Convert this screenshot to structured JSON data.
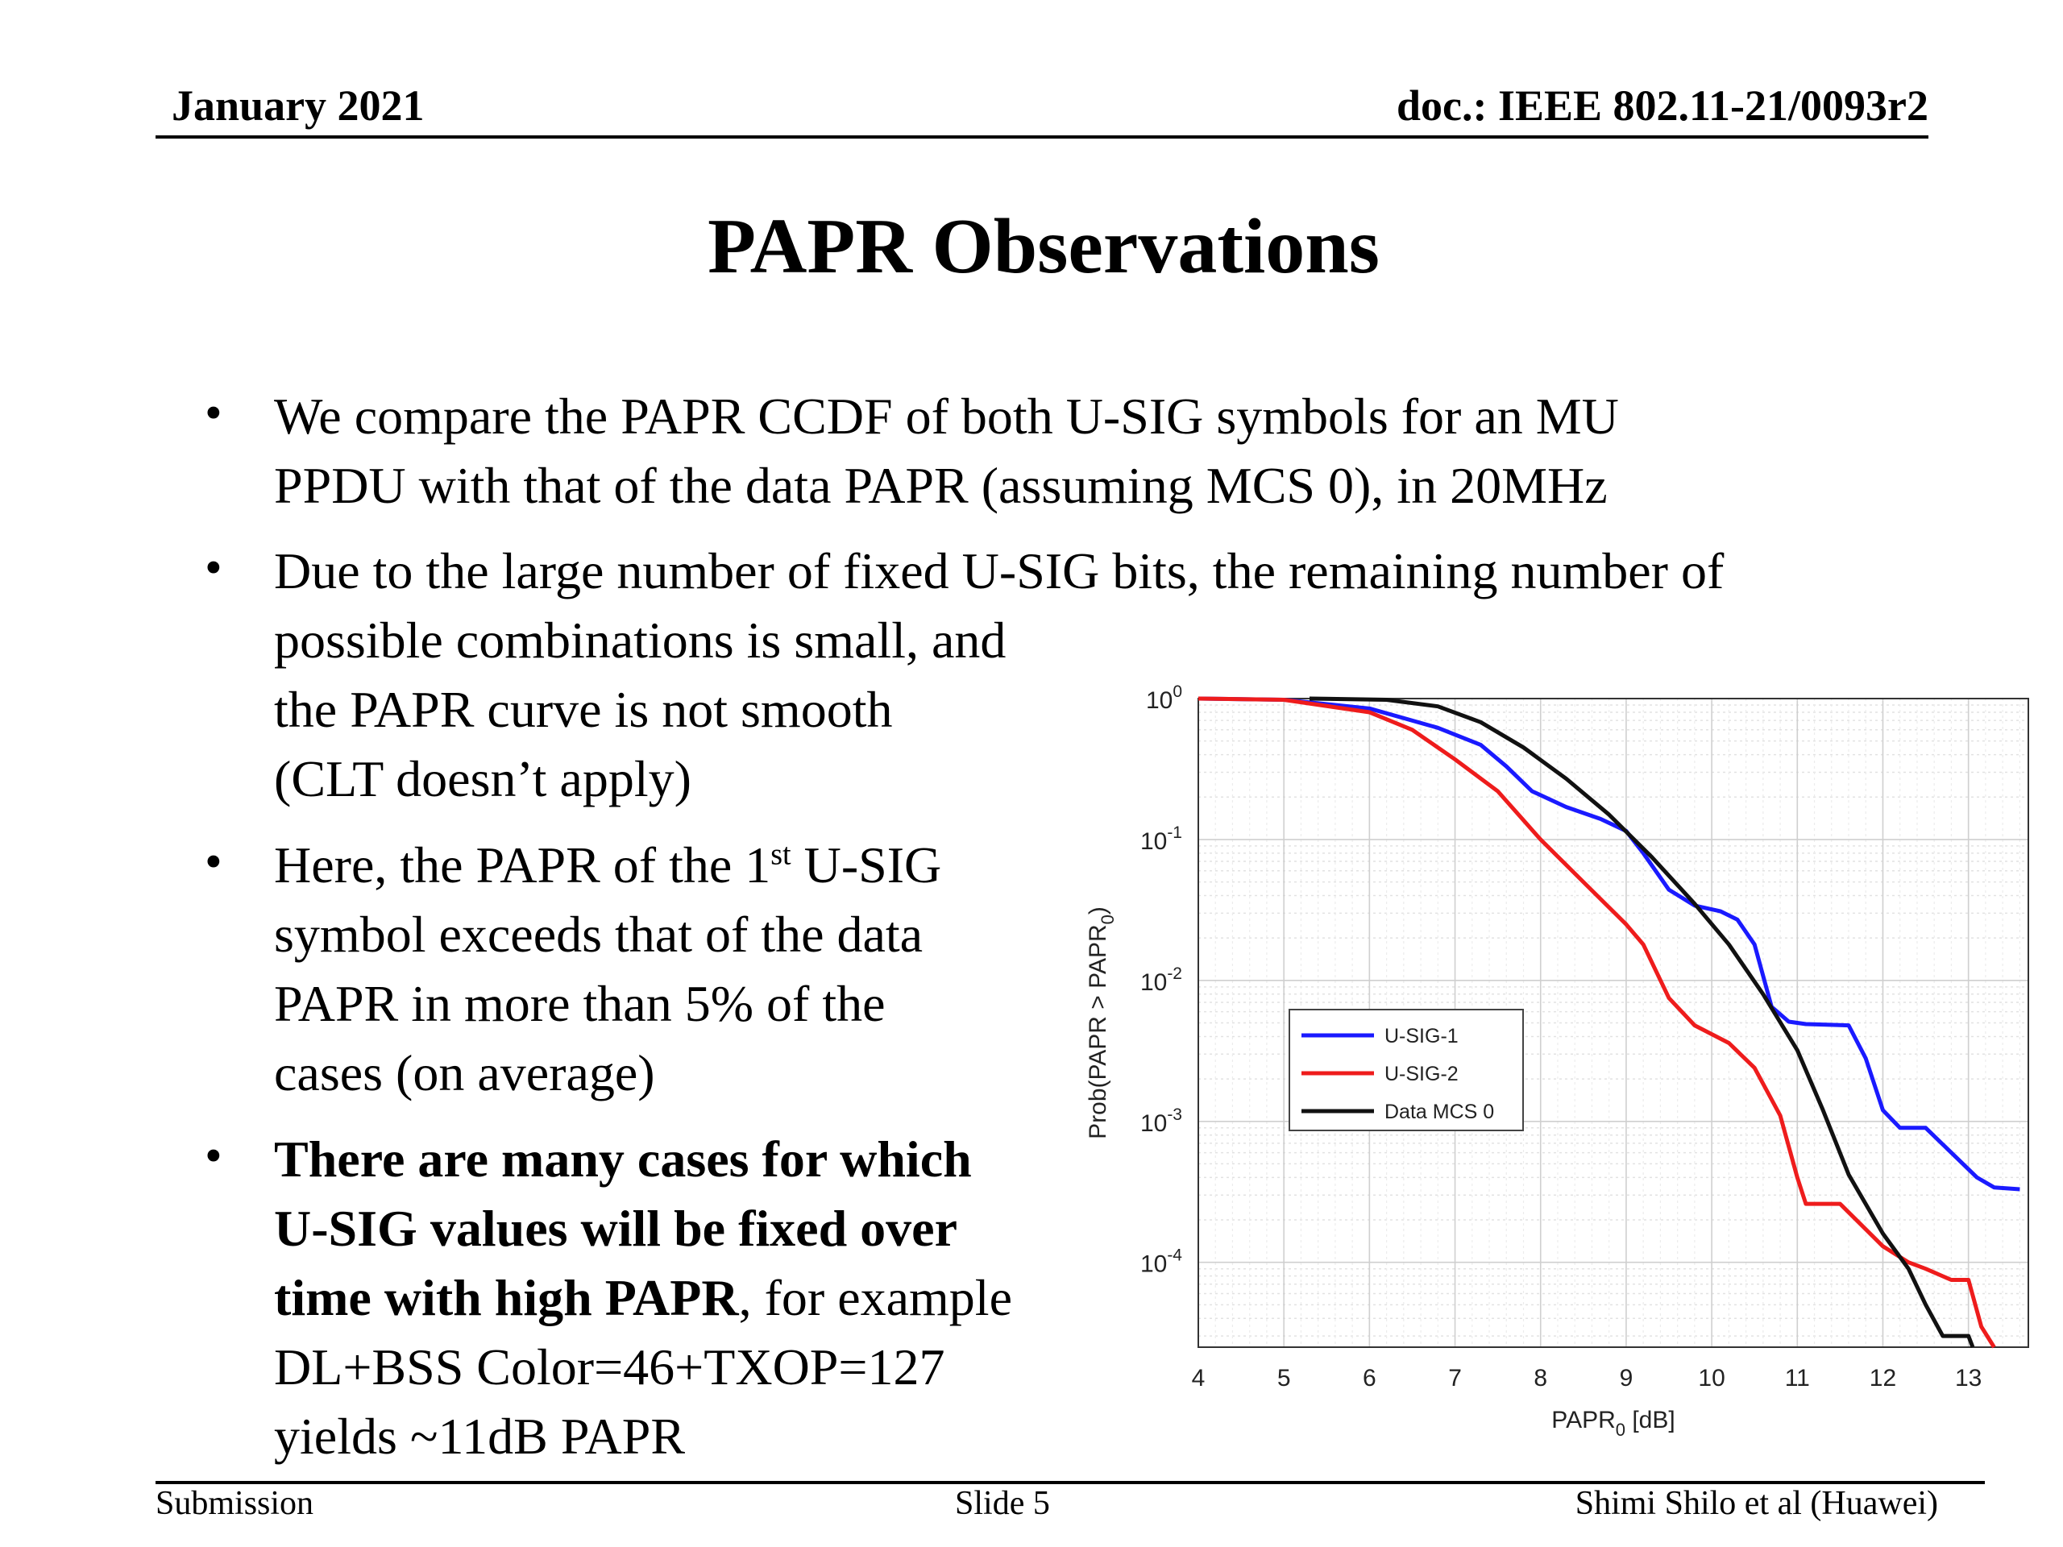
{
  "header": {
    "date": "January 2021",
    "doc": "doc.: IEEE 802.11-21/0093r2"
  },
  "slide": {
    "title": "PAPR Observations",
    "bullets": [
      {
        "line1": "We compare the PAPR CCDF of both U-SIG symbols for an MU",
        "line2": "PPDU with that of the data PAPR (assuming MCS 0), in 20MHz"
      },
      {
        "line1": "Due to the large number of fixed U-SIG bits, the remaining number of",
        "line2": "possible combinations is small, and",
        "line3": "the PAPR curve is not smooth",
        "line4": "(CLT doesn’t apply)"
      },
      {
        "pre": "Here, the PAPR of the 1",
        "sup": "st",
        "post": " U-SIG",
        "line2": "symbol exceeds that of the data",
        "line3": "PAPR in more than 5% of the",
        "line4": "cases (on average)"
      },
      {
        "bold1": "There are many cases for which",
        "bold2": "U-SIG values will be fixed over",
        "bold3": "time with high PAPR",
        "rest3": ", for example",
        "line4": "DL+BSS Color=46+TXOP=127",
        "line5": "yields ~11dB PAPR"
      }
    ]
  },
  "footer": {
    "left": "Submission",
    "center": "Slide 5",
    "right": "Shimi Shilo et al (Huawei)"
  },
  "chart_data": {
    "type": "line",
    "xlabel": "PAPR",
    "xlabel_sub": "0",
    "xlabel_unit": " [dB]",
    "ylabel": "Prob(PAPR > PAPR",
    "ylabel_sub": "0",
    "ylabel_end": ")",
    "y_scale": "log",
    "xlim": [
      4,
      13.7
    ],
    "ylim": [
      2.5e-05,
      1
    ],
    "xticks": [
      "4",
      "5",
      "6",
      "7",
      "8",
      "9",
      "10",
      "11",
      "12",
      "13"
    ],
    "yticks": [
      {
        "base": "10",
        "exp": "0"
      },
      {
        "base": "10",
        "exp": "-1"
      },
      {
        "base": "10",
        "exp": "-2"
      },
      {
        "base": "10",
        "exp": "-3"
      },
      {
        "base": "10",
        "exp": "-4"
      }
    ],
    "grid": true,
    "legend_position": "lower-left",
    "series": [
      {
        "name": "U-SIG-1",
        "color": "#1a1aff",
        "points": [
          [
            4,
            1
          ],
          [
            5,
            0.98
          ],
          [
            6,
            0.85
          ],
          [
            6.8,
            0.62
          ],
          [
            7.3,
            0.47
          ],
          [
            7.6,
            0.33
          ],
          [
            7.9,
            0.22
          ],
          [
            8.3,
            0.17
          ],
          [
            8.7,
            0.14
          ],
          [
            9.0,
            0.115
          ],
          [
            9.2,
            0.08
          ],
          [
            9.5,
            0.044
          ],
          [
            9.8,
            0.034
          ],
          [
            10.1,
            0.031
          ],
          [
            10.3,
            0.027
          ],
          [
            10.5,
            0.018
          ],
          [
            10.7,
            0.0065
          ],
          [
            10.9,
            0.0051
          ],
          [
            11.1,
            0.0049
          ],
          [
            11.6,
            0.0048
          ],
          [
            11.8,
            0.0028
          ],
          [
            12.0,
            0.0012
          ],
          [
            12.2,
            0.0009
          ],
          [
            12.5,
            0.0009
          ],
          [
            12.8,
            0.0006
          ],
          [
            13.1,
            0.0004
          ],
          [
            13.3,
            0.00034
          ],
          [
            13.6,
            0.00033
          ]
        ]
      },
      {
        "name": "U-SIG-2",
        "color": "#ee1c1c",
        "points": [
          [
            4,
            1
          ],
          [
            5,
            0.98
          ],
          [
            6,
            0.8
          ],
          [
            6.5,
            0.6
          ],
          [
            7,
            0.37
          ],
          [
            7.5,
            0.22
          ],
          [
            8,
            0.1
          ],
          [
            8.5,
            0.05
          ],
          [
            9,
            0.025
          ],
          [
            9.2,
            0.018
          ],
          [
            9.5,
            0.0075
          ],
          [
            9.8,
            0.0048
          ],
          [
            10.2,
            0.0036
          ],
          [
            10.5,
            0.0024
          ],
          [
            10.8,
            0.0011
          ],
          [
            11.0,
            0.0004
          ],
          [
            11.1,
            0.00026
          ],
          [
            11.5,
            0.00026
          ],
          [
            12.0,
            0.00013
          ],
          [
            12.3,
            0.0001
          ],
          [
            12.5,
            9e-05
          ],
          [
            12.8,
            7.5e-05
          ],
          [
            13.0,
            7.5e-05
          ],
          [
            13.15,
            3.5e-05
          ],
          [
            13.3,
            2.5e-05
          ]
        ]
      },
      {
        "name": "Data MCS 0",
        "color": "#111111",
        "points": [
          [
            5.3,
            1
          ],
          [
            6.2,
            0.98
          ],
          [
            6.8,
            0.88
          ],
          [
            7.3,
            0.68
          ],
          [
            7.8,
            0.45
          ],
          [
            8.3,
            0.27
          ],
          [
            8.8,
            0.15
          ],
          [
            9.3,
            0.075
          ],
          [
            9.8,
            0.035
          ],
          [
            10.2,
            0.018
          ],
          [
            10.6,
            0.008
          ],
          [
            11.0,
            0.0032
          ],
          [
            11.3,
            0.0012
          ],
          [
            11.6,
            0.00042
          ],
          [
            12.0,
            0.00016
          ],
          [
            12.3,
            9e-05
          ],
          [
            12.5,
            5e-05
          ],
          [
            12.7,
            3e-05
          ],
          [
            13.0,
            3e-05
          ],
          [
            13.05,
            2.5e-05
          ]
        ]
      }
    ]
  }
}
